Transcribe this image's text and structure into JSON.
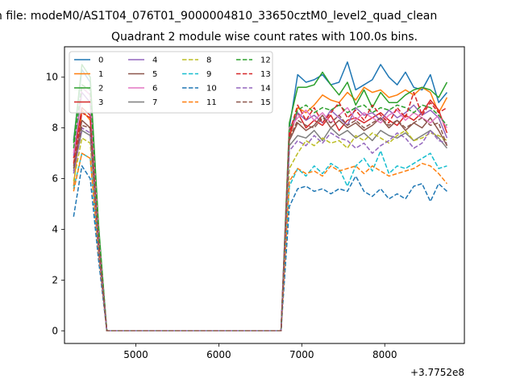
{
  "figure": {
    "suptitle": "n file: modeM0/AS1T04_076T01_9000004810_33650cztM0_level2_quad_clean",
    "title": "Quadrant 2 module wise count rates with 100.0s bins.",
    "offset_label": "+3.7752e8"
  },
  "chart_data": {
    "type": "line",
    "title": "Quadrant 2 module wise count rates with 100.0s bins.",
    "xlabel": "",
    "ylabel": "",
    "x_offset": 377520000,
    "xlim": [
      4140,
      8960
    ],
    "ylim": [
      -0.5,
      11.2
    ],
    "xticks": [
      5000,
      6000,
      7000,
      8000
    ],
    "xtick_labels": [
      "5000",
      "6000",
      "7000",
      "8000"
    ],
    "yticks": [
      0,
      2,
      4,
      6,
      8,
      10
    ],
    "ytick_labels": [
      "0",
      "2",
      "4",
      "6",
      "8",
      "10"
    ],
    "grid": false,
    "legend": {
      "placement": "top-left",
      "columns": 4
    },
    "x": [
      4250,
      4350,
      4450,
      4550,
      4650,
      4750,
      4850,
      4950,
      5050,
      5150,
      5250,
      5350,
      5450,
      5550,
      5650,
      5750,
      5850,
      5950,
      6050,
      6150,
      6250,
      6350,
      6450,
      6550,
      6650,
      6750,
      6850,
      6950,
      7050,
      7150,
      7250,
      7350,
      7450,
      7550,
      7650,
      7750,
      7850,
      7950,
      8050,
      8150,
      8250,
      8350,
      8450,
      8550,
      8650,
      8750
    ],
    "series": [
      {
        "name": "0",
        "color": "#1f77b4",
        "dash": "solid",
        "values": [
          7.5,
          10.3,
          9.8,
          4.0,
          0,
          0,
          0,
          0,
          0,
          0,
          0,
          0,
          0,
          0,
          0,
          0,
          0,
          0,
          0,
          0,
          0,
          0,
          0,
          0,
          0,
          0,
          8.0,
          10.1,
          9.8,
          9.9,
          10.1,
          9.7,
          9.8,
          10.6,
          9.5,
          9.7,
          9.9,
          10.5,
          10.0,
          9.7,
          10.2,
          9.6,
          9.5,
          10.1,
          9.0,
          9.4
        ]
      },
      {
        "name": "1",
        "color": "#ff7f0e",
        "dash": "solid",
        "values": [
          5.7,
          8.7,
          8.3,
          3.5,
          0,
          0,
          0,
          0,
          0,
          0,
          0,
          0,
          0,
          0,
          0,
          0,
          0,
          0,
          0,
          0,
          0,
          0,
          0,
          0,
          0,
          0,
          7.6,
          8.8,
          8.6,
          8.9,
          9.3,
          9.1,
          9.0,
          9.4,
          9.1,
          9.6,
          9.4,
          9.5,
          9.2,
          9.3,
          9.5,
          9.3,
          9.6,
          9.4,
          8.6,
          9.2
        ]
      },
      {
        "name": "2",
        "color": "#2ca02c",
        "dash": "solid",
        "values": [
          7.4,
          10.5,
          10.0,
          4.2,
          0,
          0,
          0,
          0,
          0,
          0,
          0,
          0,
          0,
          0,
          0,
          0,
          0,
          0,
          0,
          0,
          0,
          0,
          0,
          0,
          0,
          0,
          8.2,
          9.6,
          9.6,
          9.7,
          10.2,
          9.7,
          9.3,
          9.8,
          8.9,
          9.5,
          8.8,
          9.4,
          9.0,
          9.0,
          9.3,
          9.5,
          9.6,
          9.5,
          9.2,
          9.8
        ]
      },
      {
        "name": "3",
        "color": "#d62728",
        "dash": "solid",
        "values": [
          6.8,
          8.8,
          8.5,
          3.6,
          0,
          0,
          0,
          0,
          0,
          0,
          0,
          0,
          0,
          0,
          0,
          0,
          0,
          0,
          0,
          0,
          0,
          0,
          0,
          0,
          0,
          0,
          7.7,
          8.6,
          8.0,
          8.3,
          8.1,
          8.5,
          7.9,
          8.3,
          8.4,
          8.2,
          8.4,
          8.6,
          8.3,
          8.1,
          8.5,
          8.3,
          8.6,
          9.1,
          8.7,
          7.8
        ]
      },
      {
        "name": "4",
        "color": "#9467bd",
        "dash": "solid",
        "values": [
          6.9,
          9.4,
          9.0,
          3.8,
          0,
          0,
          0,
          0,
          0,
          0,
          0,
          0,
          0,
          0,
          0,
          0,
          0,
          0,
          0,
          0,
          0,
          0,
          0,
          0,
          0,
          0,
          7.9,
          8.6,
          8.3,
          8.5,
          8.2,
          8.7,
          8.4,
          8.1,
          8.8,
          8.5,
          8.6,
          8.3,
          8.7,
          8.4,
          8.6,
          8.9,
          8.5,
          8.7,
          8.4,
          7.6
        ]
      },
      {
        "name": "5",
        "color": "#8c564b",
        "dash": "solid",
        "values": [
          6.5,
          8.3,
          8.0,
          3.4,
          0,
          0,
          0,
          0,
          0,
          0,
          0,
          0,
          0,
          0,
          0,
          0,
          0,
          0,
          0,
          0,
          0,
          0,
          0,
          0,
          0,
          0,
          7.5,
          8.2,
          7.9,
          8.1,
          8.5,
          8.0,
          8.3,
          8.0,
          8.2,
          7.9,
          8.1,
          8.4,
          8.0,
          8.3,
          7.9,
          8.2,
          8.0,
          8.4,
          7.9,
          7.3
        ]
      },
      {
        "name": "6",
        "color": "#e377c2",
        "dash": "solid",
        "values": [
          7.0,
          9.6,
          9.3,
          3.9,
          0,
          0,
          0,
          0,
          0,
          0,
          0,
          0,
          0,
          0,
          0,
          0,
          0,
          0,
          0,
          0,
          0,
          0,
          0,
          0,
          0,
          0,
          8.0,
          8.4,
          8.7,
          8.3,
          8.6,
          8.2,
          8.5,
          8.8,
          8.3,
          8.6,
          8.4,
          8.2,
          8.5,
          8.7,
          8.3,
          8.6,
          8.4,
          8.2,
          8.5,
          8.0
        ]
      },
      {
        "name": "7",
        "color": "#7f7f7f",
        "dash": "solid",
        "values": [
          6.3,
          7.9,
          7.7,
          3.3,
          0,
          0,
          0,
          0,
          0,
          0,
          0,
          0,
          0,
          0,
          0,
          0,
          0,
          0,
          0,
          0,
          0,
          0,
          0,
          0,
          0,
          0,
          7.3,
          7.7,
          7.6,
          7.9,
          7.5,
          8.0,
          7.7,
          7.9,
          7.6,
          7.8,
          7.5,
          7.9,
          7.7,
          7.6,
          7.8,
          7.5,
          7.7,
          7.9,
          7.6,
          7.2
        ]
      },
      {
        "name": "8",
        "color": "#bcbd22",
        "dash": "dashed",
        "values": [
          5.9,
          7.6,
          7.4,
          3.2,
          0,
          0,
          0,
          0,
          0,
          0,
          0,
          0,
          0,
          0,
          0,
          0,
          0,
          0,
          0,
          0,
          0,
          0,
          0,
          0,
          0,
          0,
          6.4,
          7.0,
          7.5,
          7.3,
          7.6,
          7.4,
          7.5,
          7.2,
          7.7,
          7.5,
          7.8,
          7.6,
          7.4,
          7.7,
          7.9,
          7.5,
          7.6,
          7.8,
          7.7,
          7.5
        ]
      },
      {
        "name": "9",
        "color": "#17becf",
        "dash": "dashed",
        "values": [
          5.6,
          7.0,
          6.8,
          3.0,
          0,
          0,
          0,
          0,
          0,
          0,
          0,
          0,
          0,
          0,
          0,
          0,
          0,
          0,
          0,
          0,
          0,
          0,
          0,
          0,
          0,
          0,
          5.7,
          6.4,
          6.1,
          6.5,
          6.2,
          6.6,
          6.4,
          5.7,
          6.5,
          6.8,
          6.3,
          7.1,
          6.2,
          6.5,
          6.4,
          6.6,
          6.8,
          7.0,
          6.4,
          6.5
        ]
      },
      {
        "name": "10",
        "color": "#1f77b4",
        "dash": "dashed",
        "values": [
          4.5,
          6.5,
          6.0,
          2.8,
          0,
          0,
          0,
          0,
          0,
          0,
          0,
          0,
          0,
          0,
          0,
          0,
          0,
          0,
          0,
          0,
          0,
          0,
          0,
          0,
          0,
          0,
          4.9,
          5.6,
          5.7,
          5.5,
          5.6,
          5.4,
          5.6,
          5.5,
          6.1,
          5.5,
          5.3,
          5.6,
          5.2,
          5.4,
          5.2,
          5.7,
          5.8,
          5.1,
          5.8,
          5.5
        ]
      },
      {
        "name": "11",
        "color": "#ff7f0e",
        "dash": "dashed",
        "values": [
          5.5,
          7.0,
          6.8,
          3.1,
          0,
          0,
          0,
          0,
          0,
          0,
          0,
          0,
          0,
          0,
          0,
          0,
          0,
          0,
          0,
          0,
          0,
          0,
          0,
          0,
          0,
          0,
          5.9,
          6.4,
          6.2,
          6.3,
          6.1,
          6.5,
          6.3,
          6.4,
          6.5,
          6.2,
          6.5,
          6.3,
          6.1,
          6.2,
          6.3,
          6.4,
          6.6,
          6.5,
          6.2,
          5.8
        ]
      },
      {
        "name": "12",
        "color": "#2ca02c",
        "dash": "dashed",
        "values": [
          7.2,
          9.7,
          9.5,
          4.0,
          0,
          0,
          0,
          0,
          0,
          0,
          0,
          0,
          0,
          0,
          0,
          0,
          0,
          0,
          0,
          0,
          0,
          0,
          0,
          0,
          0,
          0,
          7.9,
          8.7,
          8.9,
          8.6,
          8.8,
          8.7,
          8.9,
          8.6,
          8.8,
          8.9,
          8.6,
          8.8,
          8.7,
          8.9,
          8.8,
          8.6,
          8.9,
          8.8,
          8.5,
          8.1
        ]
      },
      {
        "name": "13",
        "color": "#d62728",
        "dash": "dashed",
        "values": [
          6.6,
          8.6,
          8.4,
          3.5,
          0,
          0,
          0,
          0,
          0,
          0,
          0,
          0,
          0,
          0,
          0,
          0,
          0,
          0,
          0,
          0,
          0,
          0,
          0,
          0,
          0,
          0,
          7.8,
          8.9,
          8.3,
          8.8,
          8.2,
          8.6,
          9.0,
          8.4,
          8.7,
          8.3,
          8.9,
          8.5,
          8.2,
          8.8,
          8.4,
          9.4,
          8.5,
          9.0,
          8.6,
          8.8
        ]
      },
      {
        "name": "14",
        "color": "#9467bd",
        "dash": "dashed",
        "values": [
          6.2,
          8.0,
          7.8,
          3.3,
          0,
          0,
          0,
          0,
          0,
          0,
          0,
          0,
          0,
          0,
          0,
          0,
          0,
          0,
          0,
          0,
          0,
          0,
          0,
          0,
          0,
          0,
          7.1,
          7.5,
          7.3,
          7.7,
          7.4,
          7.8,
          7.6,
          7.5,
          7.2,
          7.4,
          7.0,
          7.3,
          7.5,
          7.8,
          7.6,
          7.2,
          7.4,
          7.9,
          7.5,
          7.4
        ]
      },
      {
        "name": "15",
        "color": "#8c564b",
        "dash": "dashed",
        "values": [
          6.4,
          8.1,
          8.0,
          3.4,
          0,
          0,
          0,
          0,
          0,
          0,
          0,
          0,
          0,
          0,
          0,
          0,
          0,
          0,
          0,
          0,
          0,
          0,
          0,
          0,
          0,
          0,
          7.6,
          8.3,
          8.1,
          8.0,
          8.4,
          8.2,
          8.5,
          8.1,
          8.3,
          8.0,
          8.2,
          8.4,
          8.1,
          8.3,
          8.0,
          8.2,
          8.4,
          8.1,
          8.2,
          7.3
        ]
      }
    ]
  }
}
